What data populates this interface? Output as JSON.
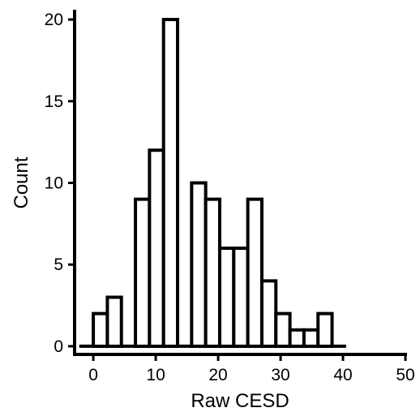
{
  "chart_data": {
    "type": "bar",
    "subtype": "histogram",
    "title": "",
    "xlabel": "Raw CESD",
    "ylabel": "Count",
    "bin_width": 2.25,
    "bins": [
      {
        "x0": 0.0,
        "x1": 2.25,
        "count": 2
      },
      {
        "x0": 2.25,
        "x1": 4.5,
        "count": 3
      },
      {
        "x0": 4.5,
        "x1": 6.75,
        "count": 0
      },
      {
        "x0": 6.75,
        "x1": 9.0,
        "count": 9
      },
      {
        "x0": 9.0,
        "x1": 11.25,
        "count": 12
      },
      {
        "x0": 11.25,
        "x1": 13.5,
        "count": 20
      },
      {
        "x0": 13.5,
        "x1": 15.75,
        "count": 0
      },
      {
        "x0": 15.75,
        "x1": 18.0,
        "count": 10
      },
      {
        "x0": 18.0,
        "x1": 20.25,
        "count": 9
      },
      {
        "x0": 20.25,
        "x1": 22.5,
        "count": 6
      },
      {
        "x0": 22.5,
        "x1": 24.75,
        "count": 6
      },
      {
        "x0": 24.75,
        "x1": 27.0,
        "count": 9
      },
      {
        "x0": 27.0,
        "x1": 29.25,
        "count": 4
      },
      {
        "x0": 29.25,
        "x1": 31.5,
        "count": 2
      },
      {
        "x0": 31.5,
        "x1": 33.75,
        "count": 1
      },
      {
        "x0": 33.75,
        "x1": 36.0,
        "count": 1
      },
      {
        "x0": 36.0,
        "x1": 38.25,
        "count": 2
      }
    ],
    "xlim": [
      -3,
      50
    ],
    "ylim": [
      -0.5,
      20.5
    ],
    "x_ticks": [
      0,
      10,
      20,
      30,
      40,
      50
    ],
    "y_ticks": [
      0,
      5,
      10,
      15,
      20
    ],
    "fill_color": "#ffffff",
    "stroke_color": "#000000",
    "grid": false,
    "legend": "none"
  }
}
